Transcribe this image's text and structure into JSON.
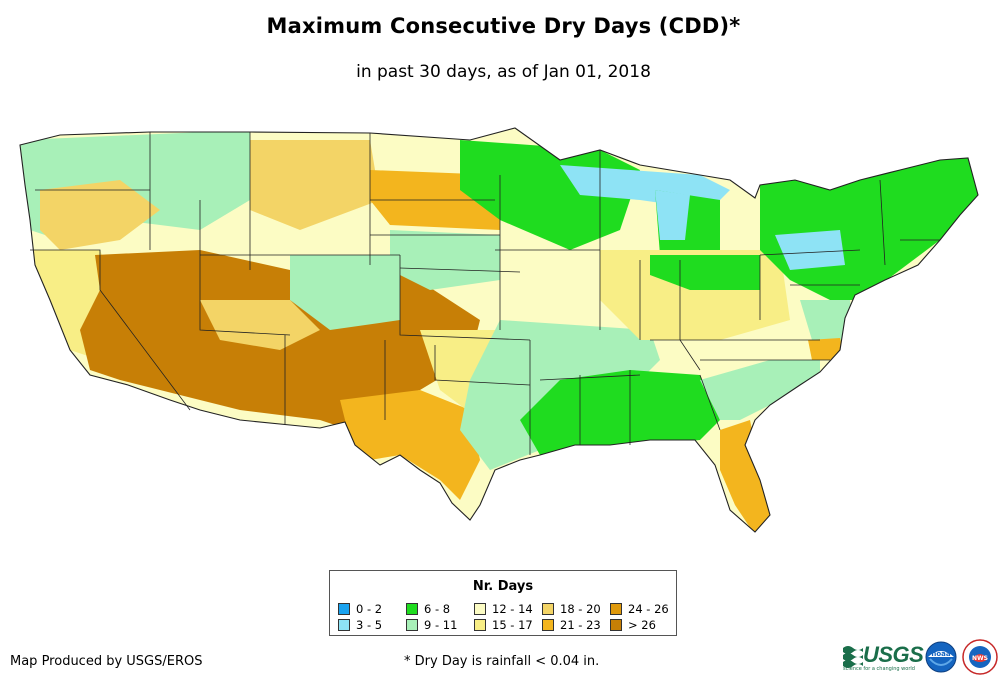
{
  "title": "Maximum Consecutive Dry Days (CDD)*",
  "subtitle": "in past 30 days, as of Jan 01, 2018",
  "legend": {
    "title": "Nr. Days",
    "items": [
      {
        "label": "0 - 2",
        "color": "#1aa3f0"
      },
      {
        "label": "3 - 5",
        "color": "#8ee3f5"
      },
      {
        "label": "6 - 8",
        "color": "#1fdc1f"
      },
      {
        "label": "9 - 11",
        "color": "#a8f0b8"
      },
      {
        "label": "12 - 14",
        "color": "#fcfcc4"
      },
      {
        "label": "15 - 17",
        "color": "#f8ee86"
      },
      {
        "label": "18 - 20",
        "color": "#f3d466"
      },
      {
        "label": "21 - 23",
        "color": "#f3b51e"
      },
      {
        "label": "24 - 26",
        "color": "#e09a0c"
      },
      {
        "label": "> 26",
        "color": "#c77f06"
      }
    ]
  },
  "credit": "Map Produced by USGS/EROS",
  "footnote": "* Dry Day is rainfall < 0.04 in.",
  "logos": {
    "usgs": "USGS",
    "usgs_tagline": "science for a changing world",
    "noaa": "noaa",
    "nws": "NWS"
  }
}
